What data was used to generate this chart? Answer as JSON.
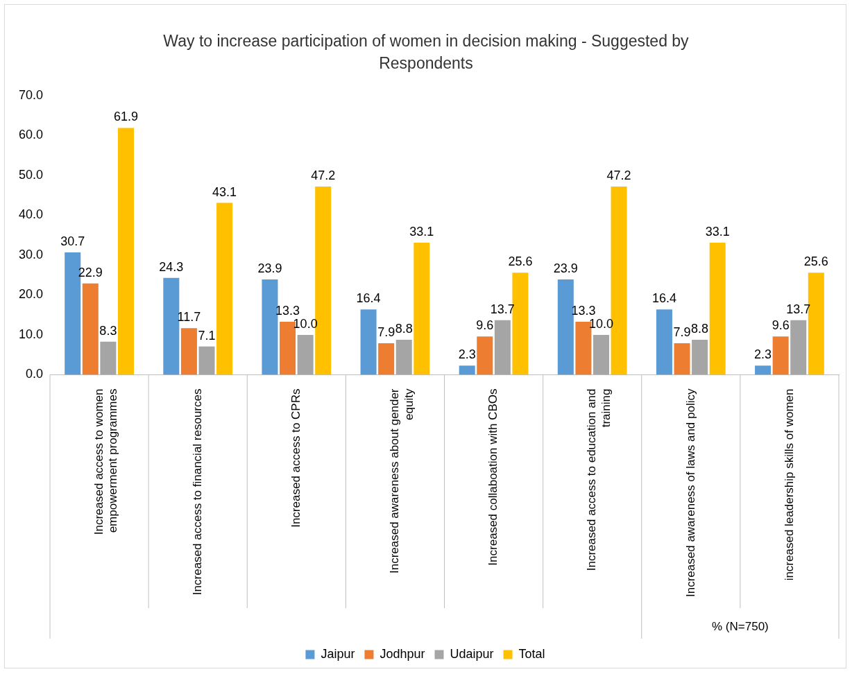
{
  "chart_data": {
    "type": "bar",
    "title": "Way to increase participation of women in decision making - Suggested by Respondents",
    "categories": [
      "Increased access to women empowerment programmes",
      "Increased access to financial resources",
      "Increased access to CPRs",
      "Increased awareness about gender equity",
      "Increased collaboation with CBOs",
      "Increased access to education and training",
      "Increased awareness of laws and policy",
      "increased leadership skills of women"
    ],
    "series": [
      {
        "name": "Jaipur",
        "color": "#5b9bd5",
        "values": [
          30.7,
          24.3,
          23.9,
          16.4,
          2.3,
          23.9,
          16.4,
          2.3
        ],
        "value_labels": [
          "30.7",
          "24.3",
          "23.9",
          "16.4",
          "2.3",
          "23.9",
          "16.4",
          "2.3"
        ]
      },
      {
        "name": "Jodhpur",
        "color": "#ed7d31",
        "values": [
          22.9,
          11.7,
          13.3,
          7.9,
          9.6,
          13.3,
          7.9,
          9.6
        ],
        "value_labels": [
          "22.9",
          "11.7",
          "13.3",
          "7.9",
          "9.6",
          "13.3",
          "7.9",
          "9.6"
        ]
      },
      {
        "name": "Udaipur",
        "color": "#a5a5a5",
        "values": [
          8.3,
          7.1,
          10.0,
          8.8,
          13.7,
          10.0,
          8.8,
          13.7
        ],
        "value_labels": [
          "8.3",
          "7.1",
          "10.0",
          "8.8",
          "13.7",
          "10.0",
          "8.8",
          "13.7"
        ]
      },
      {
        "name": "Total",
        "color": "#ffc000",
        "values": [
          61.9,
          43.1,
          47.2,
          33.1,
          25.6,
          47.2,
          33.1,
          25.6
        ],
        "value_labels": [
          "61.9",
          "43.1",
          "47.2",
          "33.1",
          "25.6",
          "47.2",
          "33.1",
          "25.6"
        ]
      }
    ],
    "ylim": [
      0,
      70
    ],
    "yticks": [
      {
        "value": 0,
        "label": "0.0"
      },
      {
        "value": 10,
        "label": "10.0"
      },
      {
        "value": 20,
        "label": "20.0"
      },
      {
        "value": 30,
        "label": "30.0"
      },
      {
        "value": 40,
        "label": "40.0"
      },
      {
        "value": 50,
        "label": "50.0"
      },
      {
        "value": 60,
        "label": "60.0"
      },
      {
        "value": 70,
        "label": "70.0"
      }
    ],
    "grid": false,
    "legend": "bottom",
    "annotations": [
      "% (N=750)"
    ]
  }
}
